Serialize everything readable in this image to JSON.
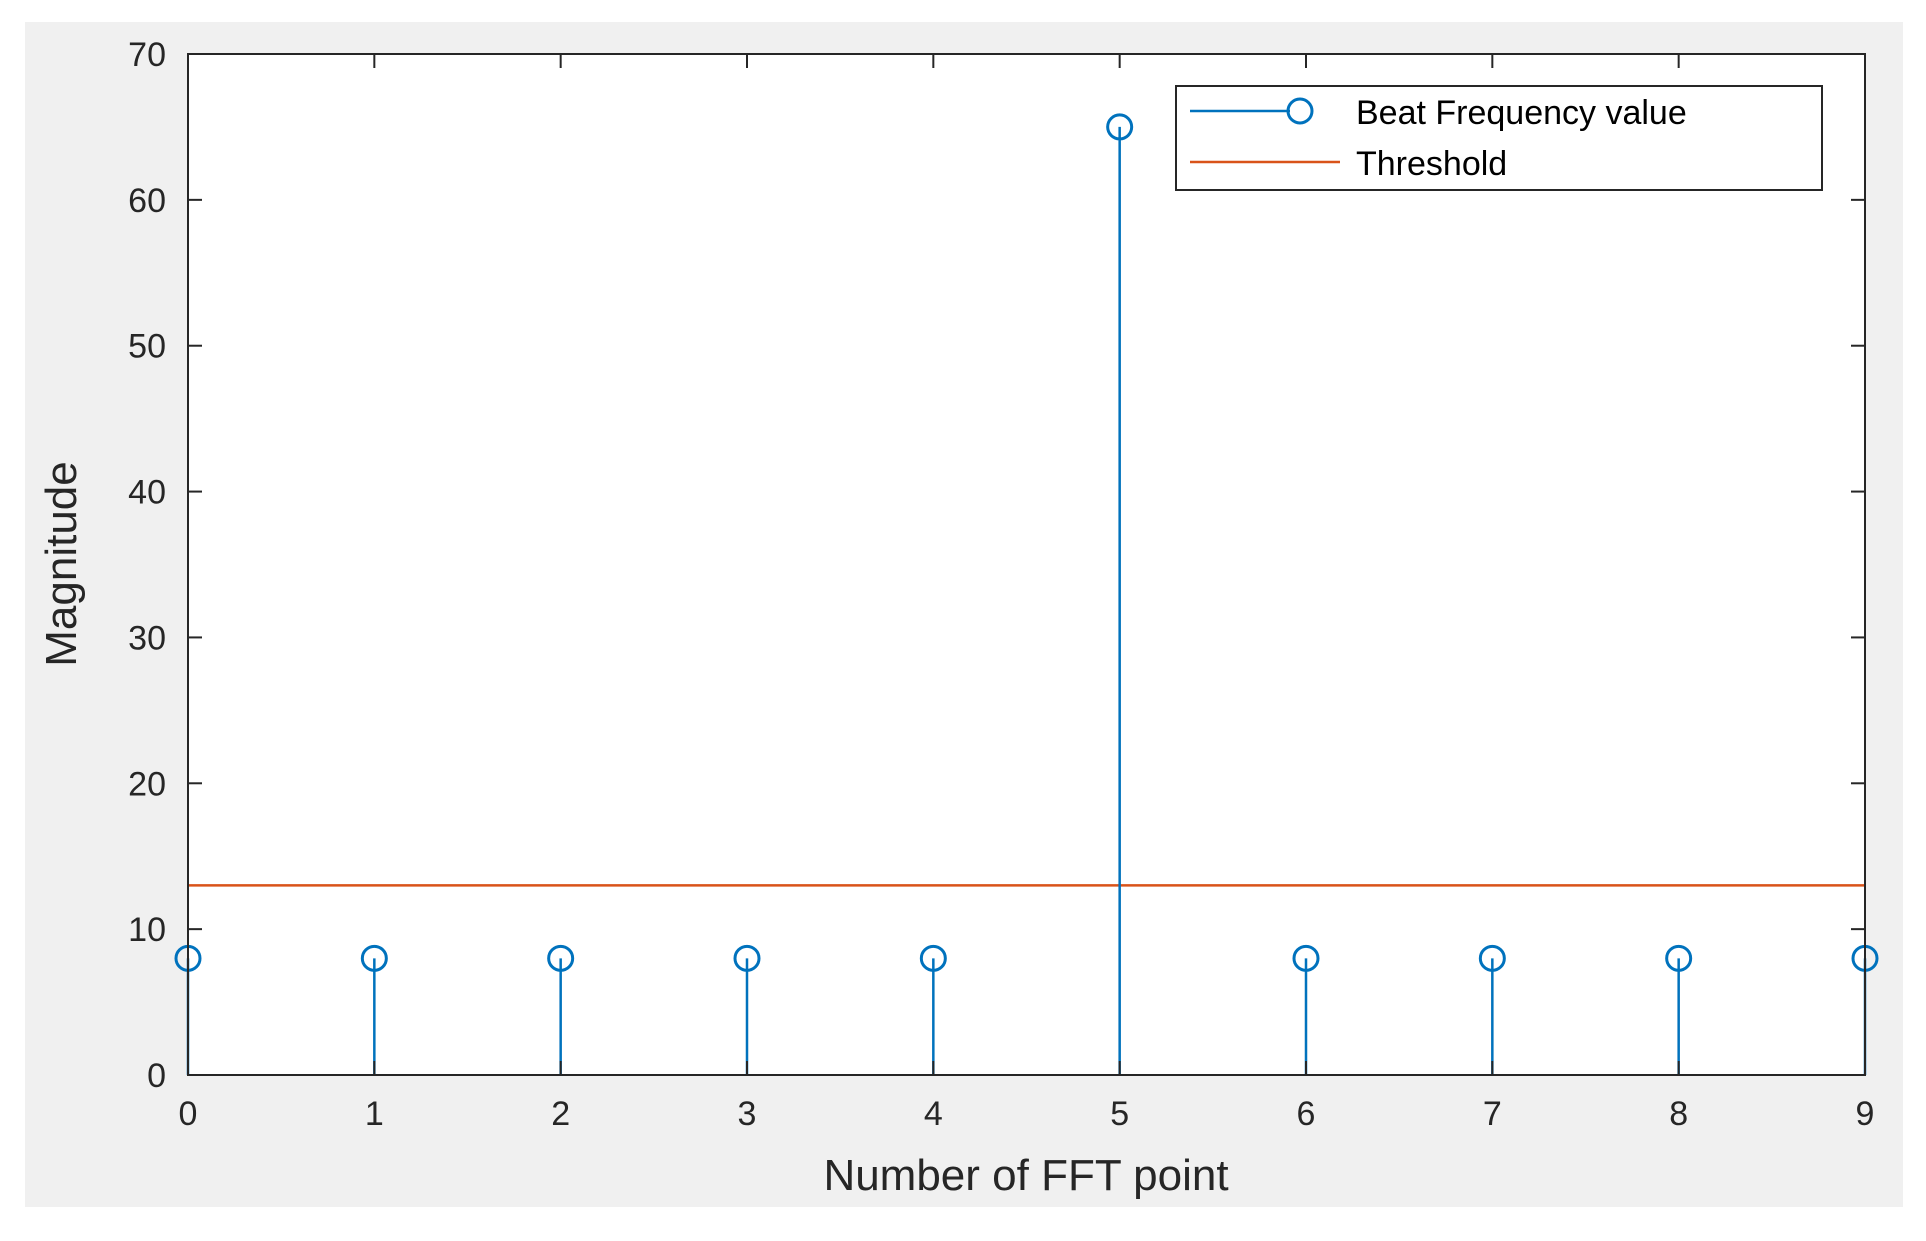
{
  "chart_data": {
    "type": "stem",
    "title": "",
    "xlabel": "Number of FFT point",
    "ylabel": "Magnitude",
    "xlim": [
      0,
      9
    ],
    "ylim": [
      0,
      70
    ],
    "xticks": [
      "0",
      "1",
      "2",
      "3",
      "4",
      "5",
      "6",
      "7",
      "8",
      "9"
    ],
    "yticks": [
      "0",
      "10",
      "20",
      "30",
      "40",
      "50",
      "60",
      "70"
    ],
    "grid": false,
    "legend_position": "top-right",
    "series": [
      {
        "name": "Beat Frequency value",
        "kind": "stem",
        "color": "#0072bd",
        "x": [
          0,
          1,
          2,
          3,
          4,
          5,
          6,
          7,
          8,
          9
        ],
        "y": [
          8,
          8,
          8,
          8,
          8,
          65,
          8,
          8,
          8,
          8
        ]
      },
      {
        "name": "Threshold",
        "kind": "line",
        "color": "#d95319",
        "x": [
          0,
          9
        ],
        "y": [
          13,
          13
        ]
      }
    ]
  },
  "colors": {
    "figure_background": "#f0f0f0",
    "axes_background": "#ffffff",
    "axis": "#262626"
  }
}
